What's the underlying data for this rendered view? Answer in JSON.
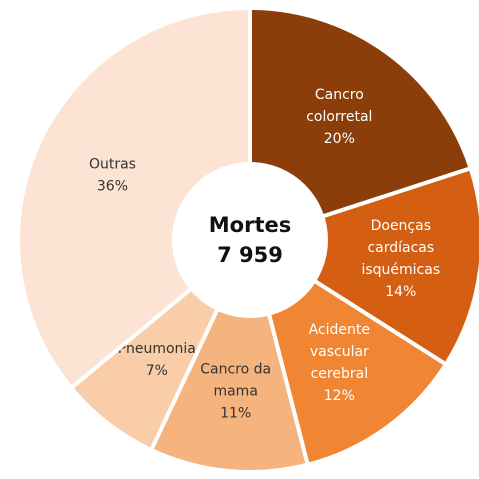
{
  "chart_data": {
    "type": "donut",
    "center_label": [
      "Mortes",
      "7 959"
    ],
    "categories": [
      [
        "Cancro",
        "colorretal"
      ],
      [
        "Doenças",
        "cardíacas",
        "isquémicas"
      ],
      [
        "Acidente",
        "vascular",
        "cerebral"
      ],
      [
        "Cancro da",
        "mama"
      ],
      [
        "Pneumonia"
      ],
      [
        "Outras"
      ]
    ],
    "values": [
      20,
      14,
      12,
      11,
      7,
      36
    ],
    "value_labels": [
      "20%",
      "14%",
      "12%",
      "11%",
      "7%",
      "36%"
    ],
    "colors": [
      "#8b3e0a",
      "#d45f12",
      "#f08633",
      "#f5b37e",
      "#f8cda8",
      "#fce3d3"
    ]
  }
}
